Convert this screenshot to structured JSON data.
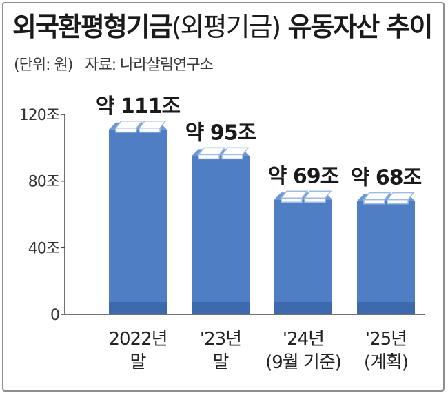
{
  "title_main": "외국환평형기금",
  "title_paren": "(외평기금)",
  "title_rest": "유동자산 추이",
  "unit": "(단위: 원)",
  "source": "자료: 나라살림연구소",
  "colors": {
    "bar": "#4f7ec4",
    "bar_top": "#6b97d6",
    "bar_base": "#3d6aad",
    "axis": "#444444",
    "bill_face": "#ffffff",
    "bill_edge": "#9fbbe2"
  },
  "icon": "money-bundle-icon",
  "chart_data": {
    "type": "bar",
    "title": "외국환평형기금(외평기금) 유동자산 추이",
    "unit": "(단위: 원)",
    "source": "자료: 나라살림연구소",
    "ylim": [
      0,
      120
    ],
    "yticks": [
      0,
      40,
      80,
      120
    ],
    "ytick_labels": [
      "0",
      "40조",
      "80조",
      "120조"
    ],
    "grid": false,
    "categories": [
      "2022년 말",
      "'23년 말",
      "'24년 (9월 기준)",
      "'25년 (계획)"
    ],
    "category_lines": [
      [
        "2022년",
        "말"
      ],
      [
        "'23년",
        "말"
      ],
      [
        "'24년",
        "(9월 기준)"
      ],
      [
        "'25년",
        "(계획)"
      ]
    ],
    "values": [
      111,
      95,
      69,
      68
    ],
    "value_labels": [
      "약 111조",
      "약 95조",
      "약 69조",
      "약 68조"
    ]
  }
}
